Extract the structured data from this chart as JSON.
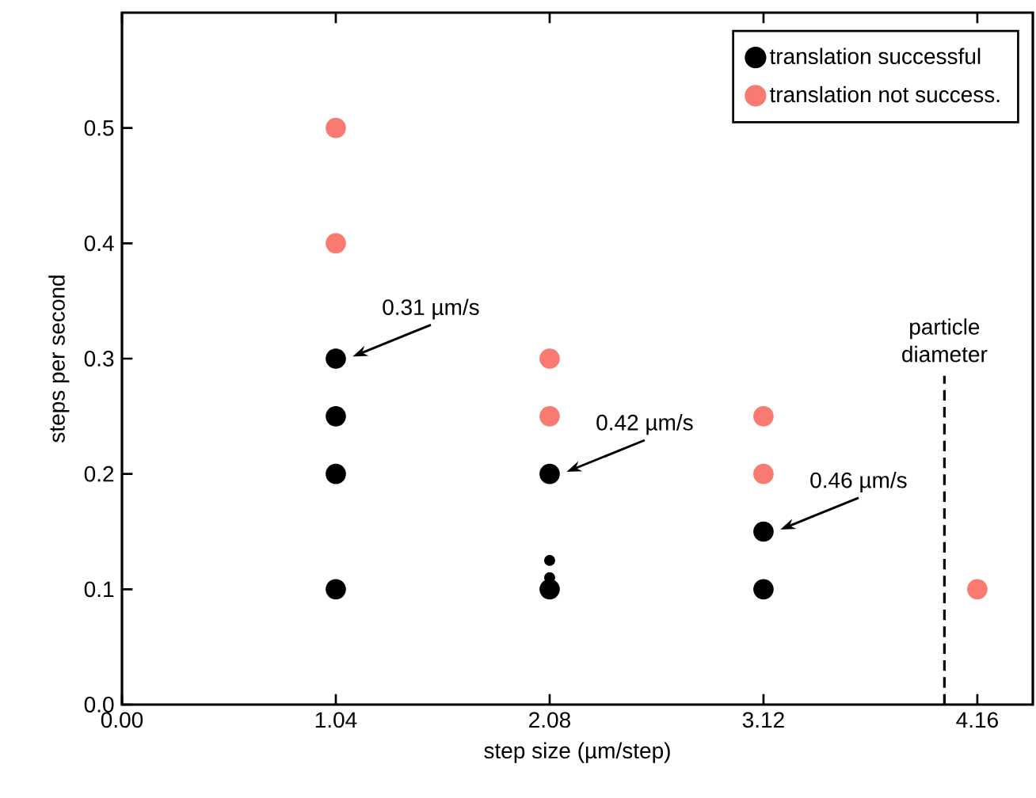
{
  "chart_data": {
    "type": "scatter",
    "xlabel": "step size (µm/step)",
    "ylabel": "steps per second",
    "xlim": [
      0,
      4.43
    ],
    "ylim": [
      0,
      0.6
    ],
    "xticks": [
      {
        "value": 0,
        "label": "0.00"
      },
      1.04,
      2.08,
      3.12,
      4.16
    ],
    "yticks": [
      {
        "value": 0,
        "label": "0.0"
      },
      0.1,
      0.2,
      0.3,
      0.4,
      0.5
    ],
    "legend": "top right",
    "grid": false,
    "series": [
      {
        "name": "translation successful",
        "color": "#000000",
        "x": [
          1.04,
          1.04,
          1.04,
          1.04,
          2.08,
          2.08,
          3.12,
          3.12
        ],
        "values": [
          0.3,
          0.25,
          0.2,
          0.1,
          0.2,
          0.1,
          0.15,
          0.1
        ]
      },
      {
        "name": "translation not success.",
        "color": "#f87a70",
        "x": [
          1.04,
          1.04,
          2.08,
          2.08,
          3.12,
          3.12,
          4.16
        ],
        "values": [
          0.5,
          0.4,
          0.3,
          0.25,
          0.25,
          0.2,
          0.1
        ]
      },
      {
        "color": "#000000",
        "x": [
          2.08,
          2.08
        ],
        "values": [
          0.125,
          0.11
        ]
      }
    ],
    "annotations": [
      {
        "text": "0.31 µm/s",
        "x": 1.04,
        "y": 0.3
      },
      {
        "text": "0.42 µm/s",
        "x": 2.08,
        "y": 0.2
      },
      {
        "text": "0.46 µm/s",
        "x": 3.12,
        "y": 0.15
      }
    ],
    "ref_lines": [
      {
        "axis": "x",
        "value": 4.0,
        "label": "particle diameter",
        "line_style": "dashed"
      }
    ]
  }
}
